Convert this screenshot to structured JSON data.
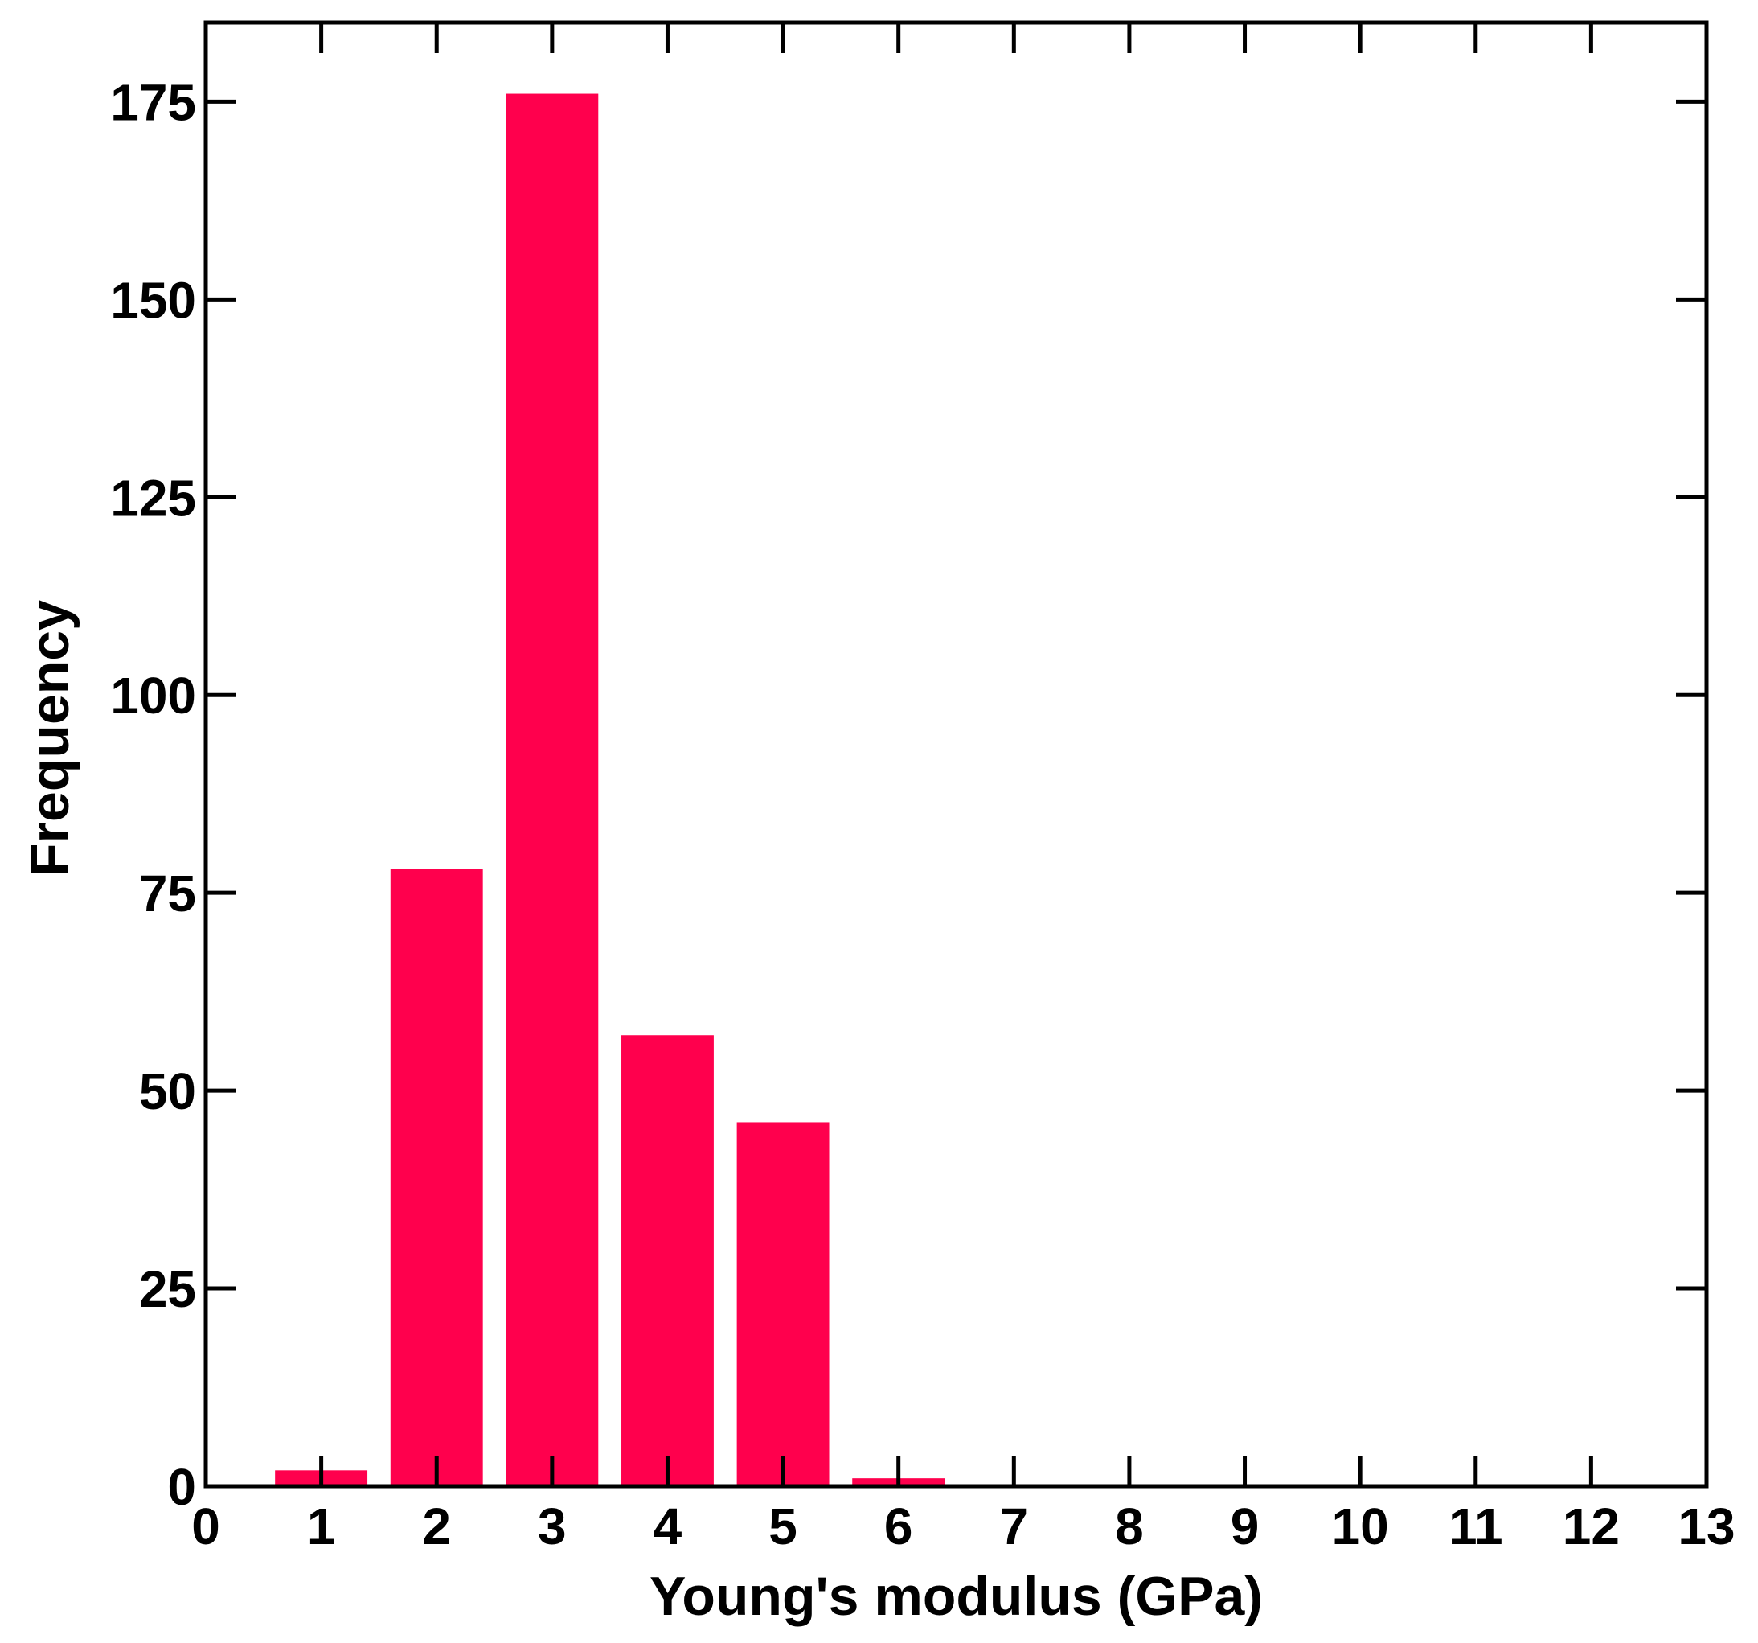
{
  "chart_data": {
    "type": "bar",
    "title": "",
    "xlabel": "Young's modulus (GPa)",
    "ylabel": "Frequency",
    "x": [
      1,
      2,
      3,
      4,
      5,
      6
    ],
    "values": [
      2,
      78,
      176,
      57,
      46,
      1
    ],
    "bar_width": 0.8,
    "xlim": [
      0,
      13
    ],
    "ylim": [
      0,
      185
    ],
    "xticks": [
      0,
      1,
      2,
      3,
      4,
      5,
      6,
      7,
      8,
      9,
      10,
      11,
      12,
      13
    ],
    "yticks": [
      0,
      25,
      50,
      75,
      100,
      125,
      150,
      175
    ],
    "xtick_labels": [
      "0",
      "1",
      "2",
      "3",
      "4",
      "5",
      "6",
      "7",
      "8",
      "9",
      "10",
      "11",
      "12",
      "13"
    ],
    "ytick_labels": [
      "0",
      "25",
      "50",
      "75",
      "100",
      "125",
      "150",
      "175"
    ],
    "bar_color": "#ff004d",
    "grid": false,
    "legend": "none"
  }
}
